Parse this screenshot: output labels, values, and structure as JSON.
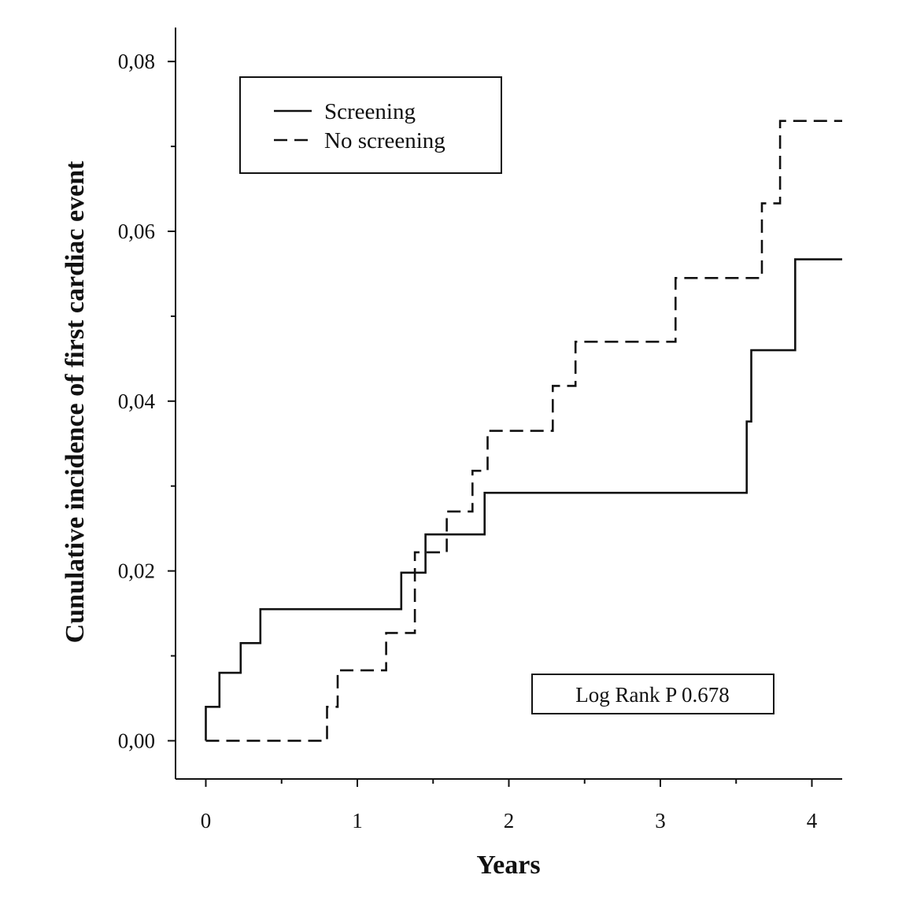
{
  "chart_data": {
    "type": "line",
    "step": true,
    "xlabel": "Years",
    "ylabel": "Cunulative incidence of first cardiac event",
    "xlim": [
      -0.2,
      4.2
    ],
    "ylim": [
      -0.0045,
      0.084
    ],
    "x_ticks": [
      {
        "value": 0,
        "label": "0"
      },
      {
        "value": 1,
        "label": "1"
      },
      {
        "value": 2,
        "label": "2"
      },
      {
        "value": 3,
        "label": "3"
      },
      {
        "value": 4,
        "label": "4"
      }
    ],
    "x_minor_ticks": [
      0.5,
      1.5,
      2.5,
      3.5
    ],
    "y_ticks": [
      {
        "value": 0.0,
        "label": "0,00"
      },
      {
        "value": 0.02,
        "label": "0,02"
      },
      {
        "value": 0.04,
        "label": "0,04"
      },
      {
        "value": 0.06,
        "label": "0,06"
      },
      {
        "value": 0.08,
        "label": "0,08"
      }
    ],
    "y_minor_ticks": [
      0.01,
      0.03,
      0.05,
      0.07
    ],
    "grid": false,
    "legend_position": "top-left",
    "series": [
      {
        "name": "Screening",
        "style": "solid",
        "points": [
          [
            0,
            0
          ],
          [
            0,
            0.004
          ],
          [
            0.09,
            0.004
          ],
          [
            0.09,
            0.008
          ],
          [
            0.23,
            0.008
          ],
          [
            0.23,
            0.0115
          ],
          [
            0.36,
            0.0115
          ],
          [
            0.36,
            0.0155
          ],
          [
            1.29,
            0.0155
          ],
          [
            1.29,
            0.0198
          ],
          [
            1.45,
            0.0198
          ],
          [
            1.45,
            0.0243
          ],
          [
            1.84,
            0.0243
          ],
          [
            1.84,
            0.0292
          ],
          [
            3.57,
            0.0292
          ],
          [
            3.57,
            0.0376
          ],
          [
            3.6,
            0.0376
          ],
          [
            3.6,
            0.046
          ],
          [
            3.89,
            0.046
          ],
          [
            3.89,
            0.0567
          ],
          [
            4.2,
            0.0567
          ]
        ]
      },
      {
        "name": "No screening",
        "style": "dashed",
        "points": [
          [
            0,
            0
          ],
          [
            0.8,
            0
          ],
          [
            0.8,
            0.004
          ],
          [
            0.87,
            0.004
          ],
          [
            0.87,
            0.0083
          ],
          [
            1.19,
            0.0083
          ],
          [
            1.19,
            0.0127
          ],
          [
            1.38,
            0.0127
          ],
          [
            1.38,
            0.0222
          ],
          [
            1.59,
            0.0222
          ],
          [
            1.59,
            0.027
          ],
          [
            1.76,
            0.027
          ],
          [
            1.76,
            0.0318
          ],
          [
            1.86,
            0.0318
          ],
          [
            1.86,
            0.0365
          ],
          [
            2.29,
            0.0365
          ],
          [
            2.29,
            0.0418
          ],
          [
            2.44,
            0.0418
          ],
          [
            2.44,
            0.047
          ],
          [
            3.1,
            0.047
          ],
          [
            3.1,
            0.0545
          ],
          [
            3.67,
            0.0545
          ],
          [
            3.67,
            0.0633
          ],
          [
            3.79,
            0.0633
          ],
          [
            3.79,
            0.073
          ],
          [
            4.2,
            0.073
          ]
        ]
      }
    ],
    "annotations": [
      {
        "text": "Log Rank P 0.678",
        "position": "bottom-right"
      }
    ]
  }
}
